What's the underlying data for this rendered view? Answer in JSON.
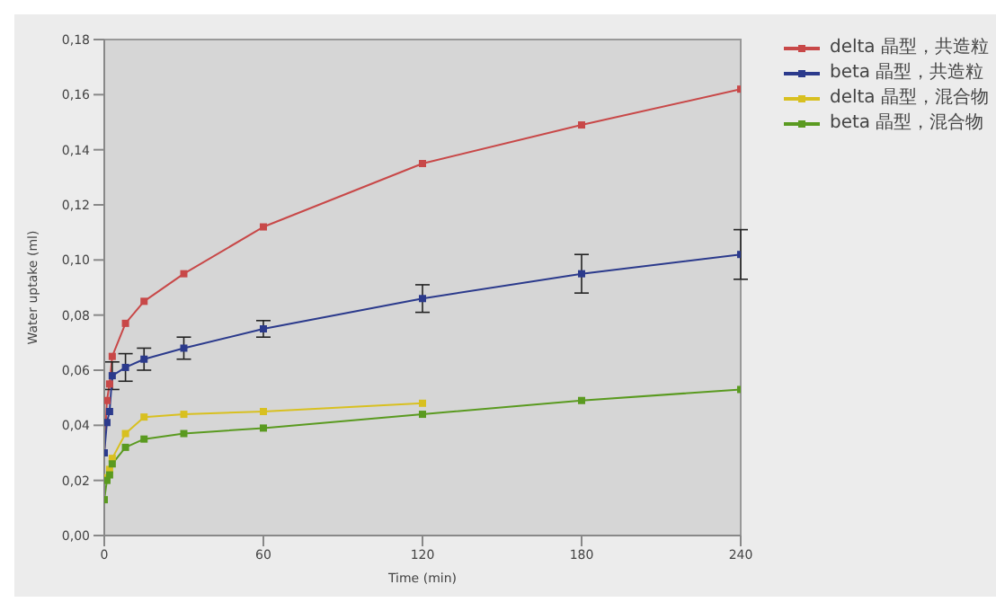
{
  "chart_data": {
    "type": "line",
    "xlabel": "Time (min)",
    "ylabel": "Water uptake (ml)",
    "x": [
      0,
      1,
      2,
      3,
      8,
      15,
      30,
      60,
      120,
      180,
      240
    ],
    "series": [
      {
        "name": "delta 晶型，共造粒",
        "color": "#c84848",
        "values": [
          0.03,
          0.049,
          0.055,
          0.065,
          0.077,
          0.085,
          0.095,
          0.112,
          0.135,
          0.149,
          0.162
        ]
      },
      {
        "name": "beta 晶型，共造粒",
        "color": "#2b3a8c",
        "values": [
          0.03,
          0.041,
          0.045,
          0.058,
          0.061,
          0.064,
          0.068,
          0.075,
          0.086,
          0.095,
          0.102
        ],
        "errors": [
          null,
          null,
          null,
          0.005,
          0.005,
          0.004,
          0.004,
          0.003,
          0.005,
          0.007,
          0.009
        ]
      },
      {
        "name": "delta 晶型，混合物",
        "color": "#d8c020",
        "values": [
          null,
          0.021,
          0.024,
          0.028,
          0.037,
          0.043,
          0.044,
          0.045,
          0.048,
          null,
          null
        ]
      },
      {
        "name": "beta 晶型，混合物",
        "color": "#5a9a20",
        "values": [
          0.013,
          0.02,
          0.022,
          0.026,
          0.032,
          0.035,
          0.037,
          0.039,
          0.044,
          0.049,
          0.053
        ]
      }
    ],
    "xlim": [
      0,
      240
    ],
    "xticks": [
      0,
      60,
      120,
      180,
      240
    ],
    "ylim": [
      0,
      0.18
    ],
    "yticks": [
      {
        "value": 0,
        "label": "0,00"
      },
      {
        "value": 0.02,
        "label": "0,02"
      },
      {
        "value": 0.04,
        "label": "0,04"
      },
      {
        "value": 0.06,
        "label": "0,06"
      },
      {
        "value": 0.08,
        "label": "0,08"
      },
      {
        "value": 0.1,
        "label": "0,10"
      },
      {
        "value": 0.12,
        "label": "0,12"
      },
      {
        "value": 0.14,
        "label": "0,14"
      },
      {
        "value": 0.16,
        "label": "0,16"
      },
      {
        "value": 0.18,
        "label": "0,18"
      }
    ],
    "legend": "top right",
    "marker": "square",
    "line_style": "solid"
  }
}
